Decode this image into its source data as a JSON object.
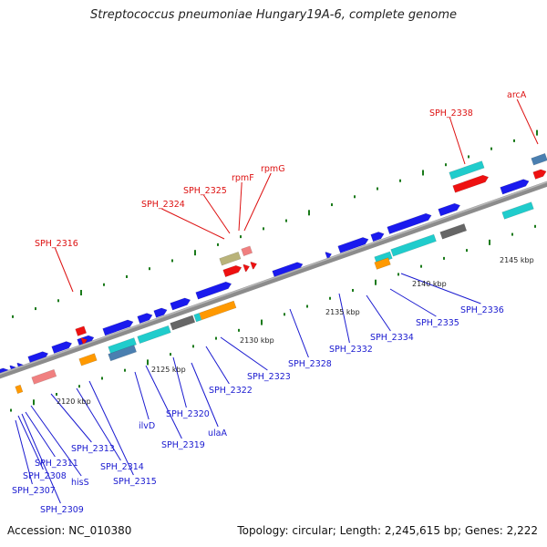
{
  "title": "Streptococcus pneumoniae Hungary19A-6, complete genome",
  "footer": {
    "accession": "Accession: NC_010380",
    "summary": "Topology: circular; Length: 2,245,615 bp; Genes: 2,222"
  },
  "colors": {
    "backbone": "#8c8c8c",
    "blue": "#1a1aee",
    "cyan": "#20cccc",
    "red": "#ee1111",
    "orange": "#ff9900",
    "pink": "#f08080",
    "gray": "#666666",
    "olive": "#b9b37a",
    "steel": "#4a7fb0",
    "tick": "#1a7a1a",
    "label_blue": "#1a1ad0",
    "label_red": "#dd1111"
  },
  "scale_labels": [
    "2120 kbp",
    "2125 kbp",
    "2130 kbp",
    "2135 kbp",
    "2140 kbp",
    "2145 kbp"
  ],
  "gene_labels": [
    {
      "text": "SPH_2316",
      "color": "red"
    },
    {
      "text": "SPH_2324",
      "color": "red"
    },
    {
      "text": "SPH_2325",
      "color": "red"
    },
    {
      "text": "rpmF",
      "color": "red"
    },
    {
      "text": "rpmG",
      "color": "red"
    },
    {
      "text": "SPH_2338",
      "color": "red"
    },
    {
      "text": "arcA",
      "color": "red"
    },
    {
      "text": "SPH_2336",
      "color": "blue"
    },
    {
      "text": "SPH_2335",
      "color": "blue"
    },
    {
      "text": "SPH_2334",
      "color": "blue"
    },
    {
      "text": "SPH_2332",
      "color": "blue"
    },
    {
      "text": "SPH_2328",
      "color": "blue"
    },
    {
      "text": "SPH_2323",
      "color": "blue"
    },
    {
      "text": "SPH_2322",
      "color": "blue"
    },
    {
      "text": "SPH_2320",
      "color": "blue"
    },
    {
      "text": "ulaA",
      "color": "blue"
    },
    {
      "text": "SPH_2319",
      "color": "blue"
    },
    {
      "text": "ilvD",
      "color": "blue"
    },
    {
      "text": "SPH_2315",
      "color": "blue"
    },
    {
      "text": "SPH_2314",
      "color": "blue"
    },
    {
      "text": "SPH_2313",
      "color": "blue"
    },
    {
      "text": "hisS",
      "color": "blue"
    },
    {
      "text": "SPH_2311",
      "color": "blue"
    },
    {
      "text": "SPH_2308",
      "color": "blue"
    },
    {
      "text": "SPH_2307",
      "color": "blue"
    },
    {
      "text": "SPH_2309",
      "color": "blue"
    }
  ]
}
